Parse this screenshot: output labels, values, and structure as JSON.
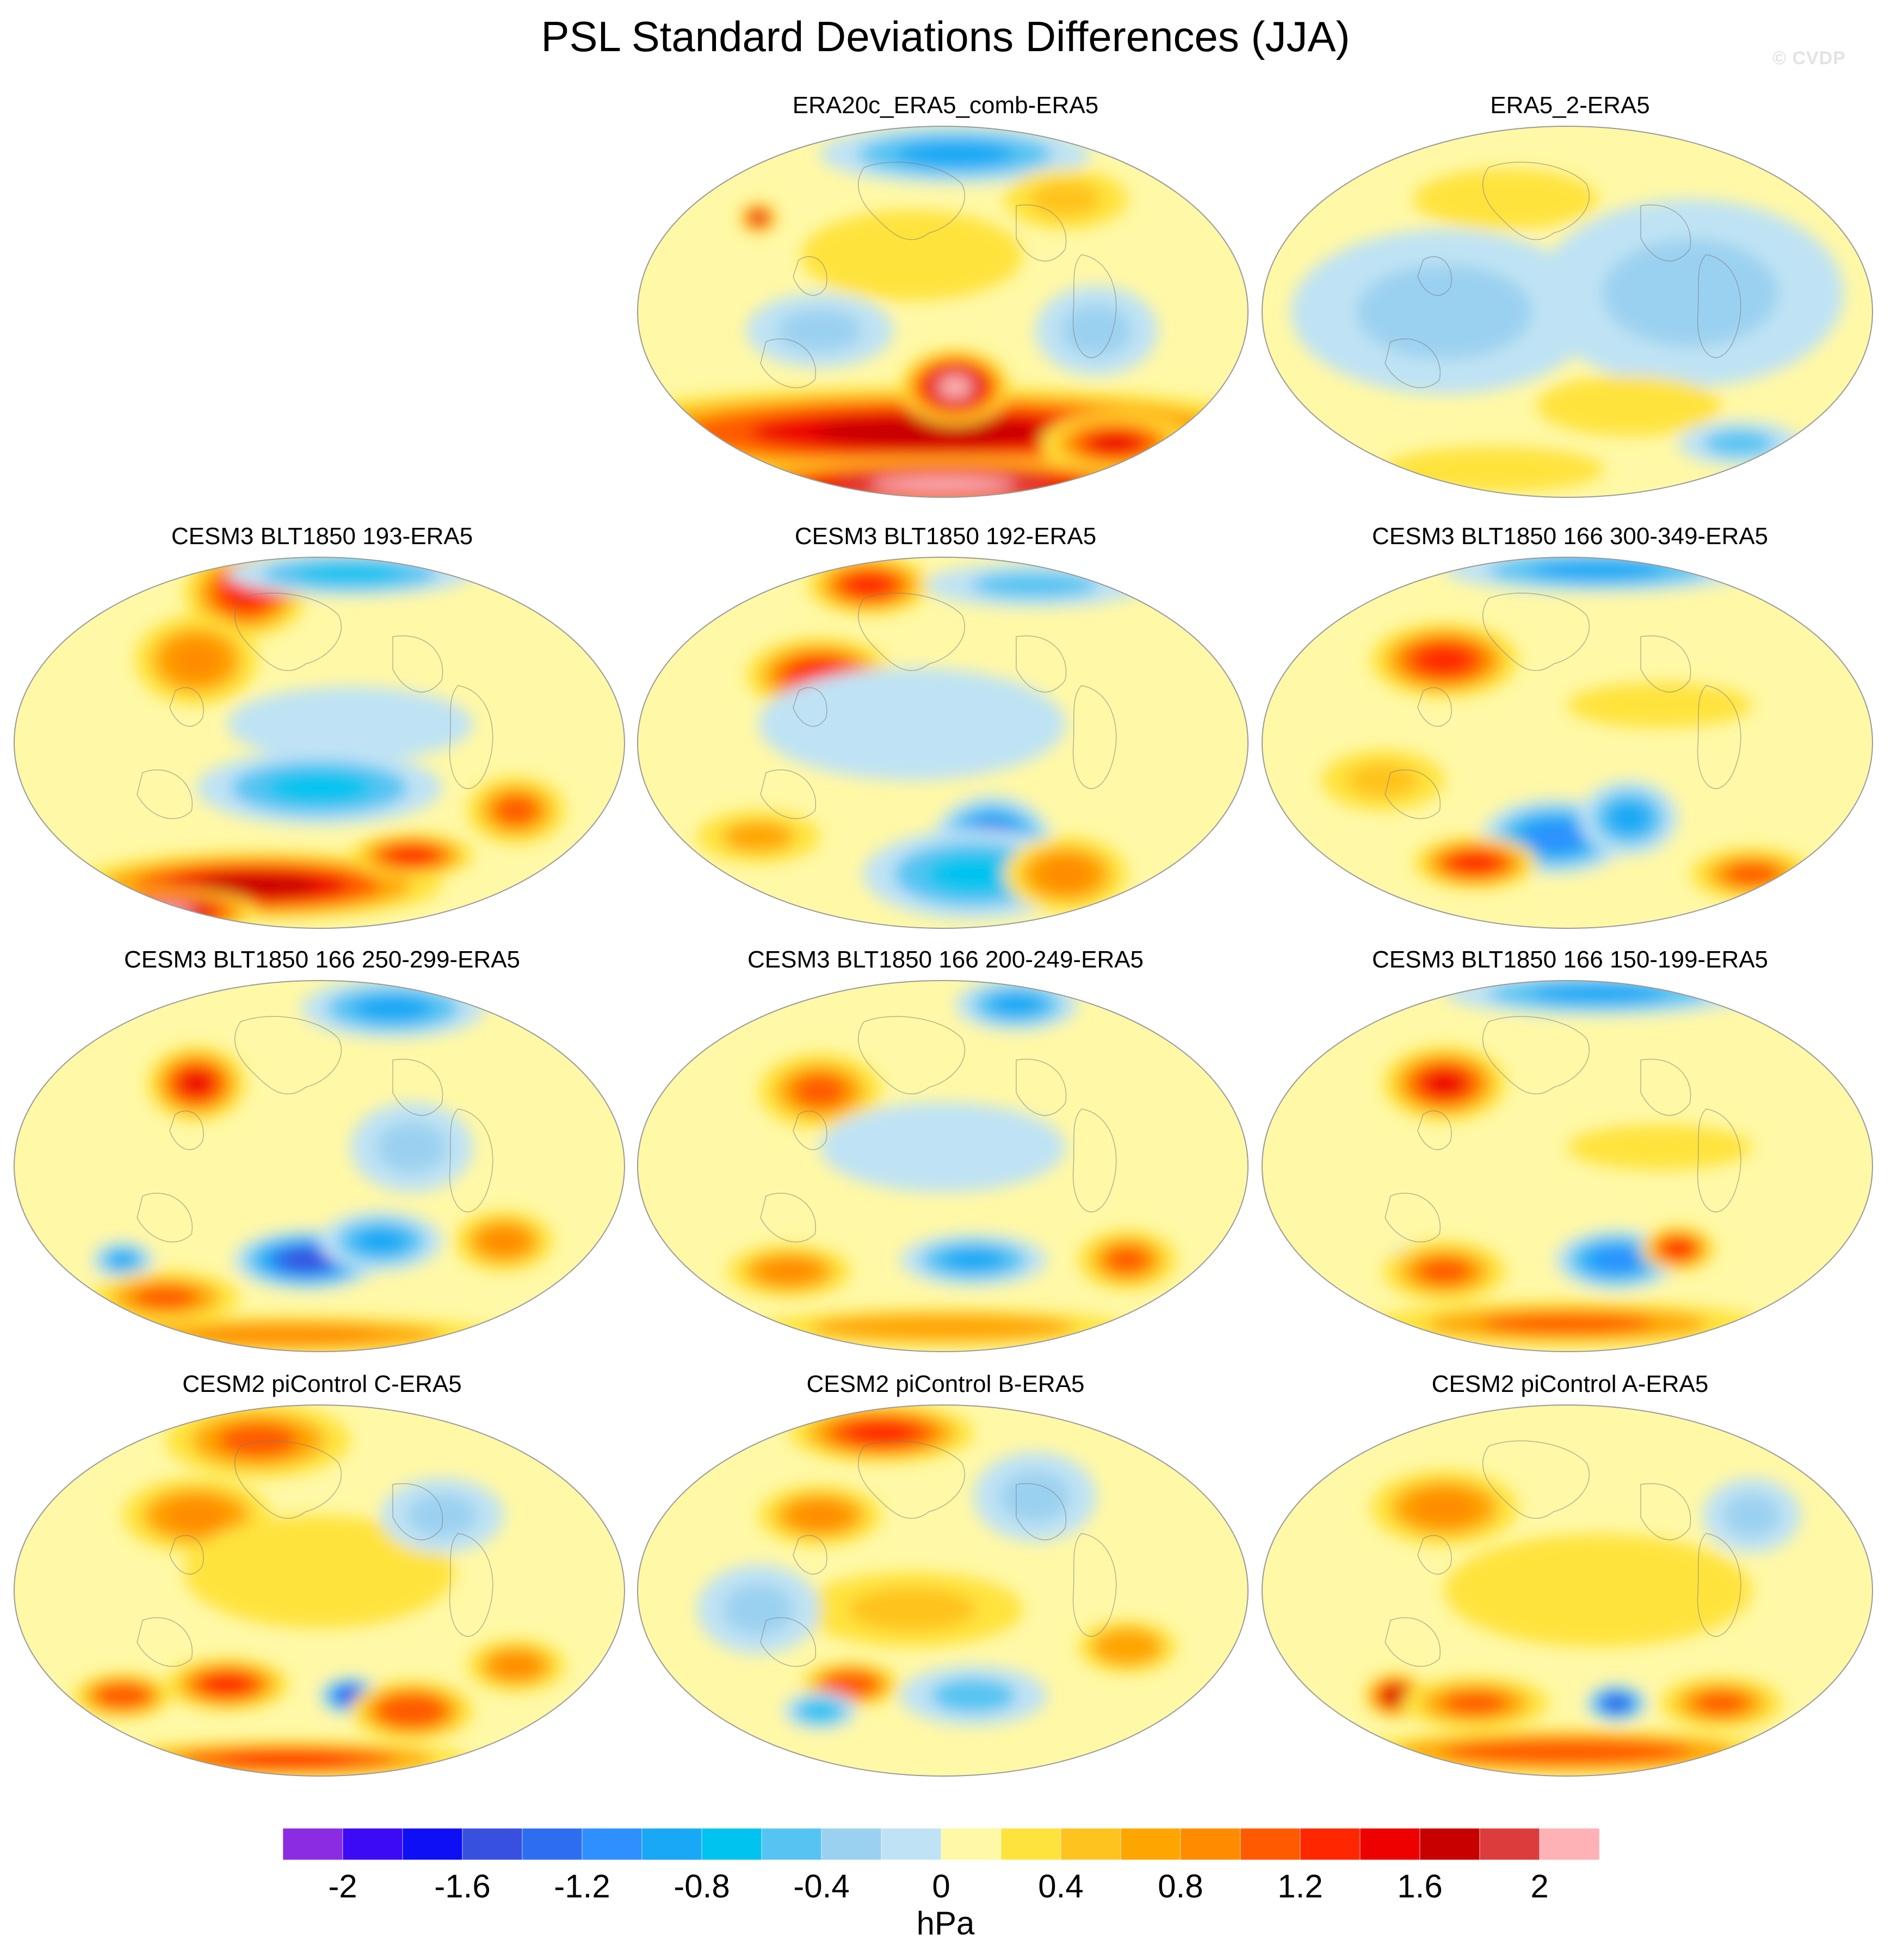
{
  "title": "PSL Standard Deviations Differences (JJA)",
  "watermark": "© CVDP",
  "chart_data": {
    "type": "heatmap",
    "projection": "robinson-style global maps",
    "grid_rows": 4,
    "grid_cols": 3,
    "panels": [
      {
        "title": "ERA20c_ERA5_comb-ERA5",
        "row": 0,
        "col": 1,
        "blobs": [
          [
            0.52,
            0.08,
            0.22,
            0.08,
            -0.9
          ],
          [
            0.2,
            0.25,
            0.03,
            0.04,
            1.8
          ],
          [
            0.48,
            0.82,
            0.6,
            0.12,
            1.6
          ],
          [
            0.5,
            0.96,
            0.4,
            0.07,
            2.2
          ],
          [
            0.52,
            0.7,
            0.09,
            0.1,
            2.1
          ],
          [
            0.78,
            0.85,
            0.12,
            0.08,
            1.4
          ],
          [
            0.3,
            0.55,
            0.12,
            0.1,
            -0.3
          ],
          [
            0.75,
            0.55,
            0.1,
            0.12,
            -0.3
          ],
          [
            0.45,
            0.35,
            0.18,
            0.12,
            0.3
          ],
          [
            0.7,
            0.2,
            0.1,
            0.08,
            0.5
          ]
        ]
      },
      {
        "title": "ERA5_2-ERA5",
        "row": 0,
        "col": 2,
        "blobs": [
          [
            0.3,
            0.5,
            0.25,
            0.22,
            -0.3
          ],
          [
            0.7,
            0.45,
            0.25,
            0.25,
            -0.3
          ],
          [
            0.4,
            0.2,
            0.15,
            0.08,
            0.2
          ],
          [
            0.6,
            0.75,
            0.15,
            0.08,
            0.2
          ],
          [
            0.78,
            0.85,
            0.1,
            0.06,
            -0.5
          ],
          [
            0.38,
            0.92,
            0.18,
            0.06,
            0.2
          ]
        ]
      },
      {
        "title": "CESM3 BLT1850 193-ERA5",
        "row": 1,
        "col": 0,
        "blobs": [
          [
            0.38,
            0.1,
            0.1,
            0.12,
            1.2
          ],
          [
            0.3,
            0.28,
            0.1,
            0.12,
            0.9
          ],
          [
            0.55,
            0.05,
            0.2,
            0.06,
            -0.8
          ],
          [
            0.5,
            0.62,
            0.2,
            0.1,
            -0.7
          ],
          [
            0.4,
            0.88,
            0.3,
            0.09,
            1.7
          ],
          [
            0.25,
            0.95,
            0.15,
            0.06,
            2.0
          ],
          [
            0.82,
            0.68,
            0.08,
            0.09,
            1.0
          ],
          [
            0.65,
            0.8,
            0.1,
            0.06,
            1.3
          ],
          [
            0.55,
            0.45,
            0.2,
            0.1,
            -0.2
          ]
        ]
      },
      {
        "title": "CESM3 BLT1850 192-ERA5",
        "row": 1,
        "col": 1,
        "blobs": [
          [
            0.38,
            0.08,
            0.1,
            0.08,
            1.2
          ],
          [
            0.3,
            0.32,
            0.12,
            0.1,
            1.2
          ],
          [
            0.58,
            0.78,
            0.1,
            0.14,
            -1.6
          ],
          [
            0.55,
            0.85,
            0.18,
            0.12,
            -0.8
          ],
          [
            0.7,
            0.85,
            0.1,
            0.1,
            0.8
          ],
          [
            0.2,
            0.75,
            0.1,
            0.07,
            0.6
          ],
          [
            0.65,
            0.08,
            0.18,
            0.06,
            -0.6
          ],
          [
            0.45,
            0.45,
            0.25,
            0.15,
            -0.2
          ]
        ]
      },
      {
        "title": "CESM3 BLT1850 166 300-349-ERA5",
        "row": 1,
        "col": 2,
        "blobs": [
          [
            0.55,
            0.04,
            0.25,
            0.06,
            -0.9
          ],
          [
            0.3,
            0.28,
            0.12,
            0.1,
            1.2
          ],
          [
            0.48,
            0.75,
            0.12,
            0.1,
            -1.2
          ],
          [
            0.6,
            0.7,
            0.08,
            0.1,
            -1.0
          ],
          [
            0.35,
            0.82,
            0.1,
            0.07,
            1.2
          ],
          [
            0.8,
            0.85,
            0.1,
            0.07,
            1.0
          ],
          [
            0.65,
            0.4,
            0.15,
            0.06,
            0.3
          ],
          [
            0.2,
            0.6,
            0.1,
            0.08,
            0.4
          ]
        ]
      },
      {
        "title": "CESM3 BLT1850 166 250-299-ERA5",
        "row": 2,
        "col": 0,
        "blobs": [
          [
            0.3,
            0.28,
            0.08,
            0.1,
            1.4
          ],
          [
            0.62,
            0.08,
            0.15,
            0.08,
            -1.0
          ],
          [
            0.48,
            0.75,
            0.12,
            0.08,
            -1.5
          ],
          [
            0.6,
            0.7,
            0.1,
            0.08,
            -1.0
          ],
          [
            0.18,
            0.75,
            0.05,
            0.05,
            -0.9
          ],
          [
            0.8,
            0.7,
            0.08,
            0.08,
            0.9
          ],
          [
            0.25,
            0.85,
            0.12,
            0.07,
            1.0
          ],
          [
            0.45,
            0.95,
            0.35,
            0.05,
            0.8
          ],
          [
            0.65,
            0.45,
            0.1,
            0.12,
            -0.3
          ]
        ]
      },
      {
        "title": "CESM3 BLT1850 166 200-249-ERA5",
        "row": 2,
        "col": 1,
        "blobs": [
          [
            0.62,
            0.07,
            0.1,
            0.07,
            -1.0
          ],
          [
            0.3,
            0.3,
            0.1,
            0.1,
            1.0
          ],
          [
            0.55,
            0.75,
            0.12,
            0.07,
            -1.0
          ],
          [
            0.8,
            0.75,
            0.08,
            0.08,
            1.0
          ],
          [
            0.25,
            0.78,
            0.1,
            0.07,
            0.9
          ],
          [
            0.5,
            0.93,
            0.3,
            0.05,
            0.7
          ],
          [
            0.5,
            0.45,
            0.2,
            0.12,
            -0.2
          ]
        ]
      },
      {
        "title": "CESM3 BLT1850 166 150-199-ERA5",
        "row": 2,
        "col": 2,
        "blobs": [
          [
            0.55,
            0.04,
            0.25,
            0.06,
            -0.9
          ],
          [
            0.3,
            0.28,
            0.1,
            0.1,
            1.4
          ],
          [
            0.58,
            0.75,
            0.1,
            0.08,
            -1.2
          ],
          [
            0.25,
            0.75,
            0.04,
            0.04,
            -0.7
          ],
          [
            0.3,
            0.78,
            0.1,
            0.08,
            1.0
          ],
          [
            0.68,
            0.72,
            0.06,
            0.06,
            1.2
          ],
          [
            0.5,
            0.92,
            0.32,
            0.06,
            1.0
          ],
          [
            0.65,
            0.45,
            0.15,
            0.06,
            0.3
          ]
        ]
      },
      {
        "title": "CESM2 piControl C-ERA5",
        "row": 3,
        "col": 0,
        "blobs": [
          [
            0.4,
            0.1,
            0.15,
            0.1,
            1.0
          ],
          [
            0.3,
            0.3,
            0.12,
            0.1,
            0.9
          ],
          [
            0.55,
            0.78,
            0.05,
            0.05,
            -1.8
          ],
          [
            0.35,
            0.75,
            0.1,
            0.07,
            1.3
          ],
          [
            0.18,
            0.78,
            0.08,
            0.06,
            1.1
          ],
          [
            0.65,
            0.82,
            0.1,
            0.08,
            1.1
          ],
          [
            0.82,
            0.7,
            0.08,
            0.07,
            0.8
          ],
          [
            0.45,
            0.95,
            0.3,
            0.05,
            1.3
          ],
          [
            0.5,
            0.45,
            0.22,
            0.15,
            0.2
          ],
          [
            0.7,
            0.3,
            0.1,
            0.1,
            -0.3
          ]
        ]
      },
      {
        "title": "CESM2 piControl B-ERA5",
        "row": 3,
        "col": 1,
        "blobs": [
          [
            0.4,
            0.08,
            0.15,
            0.08,
            1.2
          ],
          [
            0.3,
            0.3,
            0.1,
            0.08,
            0.8
          ],
          [
            0.35,
            0.75,
            0.08,
            0.06,
            1.1
          ],
          [
            0.55,
            0.78,
            0.12,
            0.08,
            -0.6
          ],
          [
            0.3,
            0.82,
            0.06,
            0.05,
            -0.8
          ],
          [
            0.8,
            0.65,
            0.08,
            0.07,
            0.7
          ],
          [
            0.45,
            0.55,
            0.18,
            0.1,
            0.4
          ],
          [
            0.65,
            0.25,
            0.1,
            0.12,
            -0.3
          ],
          [
            0.2,
            0.55,
            0.1,
            0.12,
            -0.3
          ]
        ]
      },
      {
        "title": "CESM2 piControl A-ERA5",
        "row": 3,
        "col": 2,
        "blobs": [
          [
            0.3,
            0.28,
            0.12,
            0.1,
            0.9
          ],
          [
            0.22,
            0.78,
            0.05,
            0.06,
            1.6
          ],
          [
            0.58,
            0.8,
            0.05,
            0.05,
            -1.6
          ],
          [
            0.35,
            0.8,
            0.12,
            0.07,
            1.0
          ],
          [
            0.75,
            0.8,
            0.1,
            0.07,
            1.0
          ],
          [
            0.5,
            0.93,
            0.35,
            0.06,
            1.1
          ],
          [
            0.55,
            0.5,
            0.25,
            0.15,
            0.2
          ],
          [
            0.8,
            0.3,
            0.08,
            0.1,
            -0.3
          ]
        ]
      }
    ],
    "colorbar": {
      "min": -2.2,
      "max": 2.2,
      "step": 0.2,
      "tick_labels": [
        "-2",
        "-1.6",
        "-1.2",
        "-0.8",
        "-0.4",
        "0",
        "0.4",
        "0.8",
        "1.2",
        "1.6",
        "2"
      ],
      "tick_values": [
        -2,
        -1.6,
        -1.2,
        -0.8,
        -0.4,
        0,
        0.4,
        0.8,
        1.2,
        1.6,
        2
      ],
      "colors": [
        "#8b2be2",
        "#3d0af5",
        "#0f0ff5",
        "#3850e0",
        "#2d6ef0",
        "#2e90ff",
        "#18a8f5",
        "#00c3ef",
        "#55c4f2",
        "#9bd1f0",
        "#bfe3f4",
        "#fff8a6",
        "#ffe33d",
        "#ffc31f",
        "#ffa500",
        "#ff8c00",
        "#ff5a00",
        "#ff2600",
        "#ee0000",
        "#c80000",
        "#dc3c3c",
        "#ffb2b6"
      ],
      "units": "hPa"
    }
  }
}
